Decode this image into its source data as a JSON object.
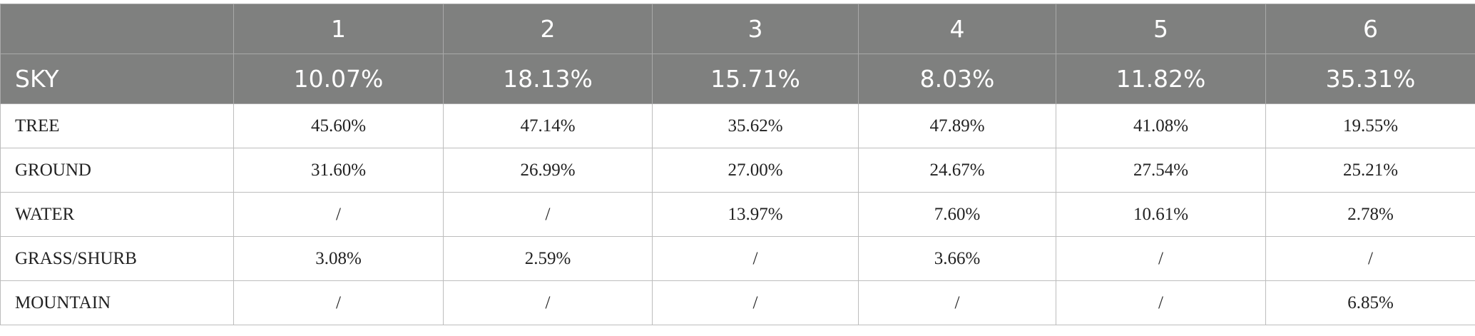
{
  "table": {
    "columns": [
      "1",
      "2",
      "3",
      "4",
      "5",
      "6"
    ],
    "rows": [
      [
        "SKY",
        "10.07%",
        "18.13%",
        "15.71%",
        "8.03%",
        "11.82%",
        "35.31%"
      ],
      [
        "TREE",
        "45.60%",
        "47.14%",
        "35.62%",
        "47.89%",
        "41.08%",
        "19.55%"
      ],
      [
        "GROUND",
        "31.60%",
        "26.99%",
        "27.00%",
        "24.67%",
        "27.54%",
        "25.21%"
      ],
      [
        "WATER",
        "/",
        "/",
        "13.97%",
        "7.60%",
        "10.61%",
        "2.78%"
      ],
      [
        "GRASS/SHURB",
        "3.08%",
        "2.59%",
        "/",
        "3.66%",
        "/",
        "/"
      ],
      [
        "MOUNTAIN",
        "/",
        "/",
        "/",
        "/",
        "/",
        "6.85%"
      ]
    ]
  }
}
